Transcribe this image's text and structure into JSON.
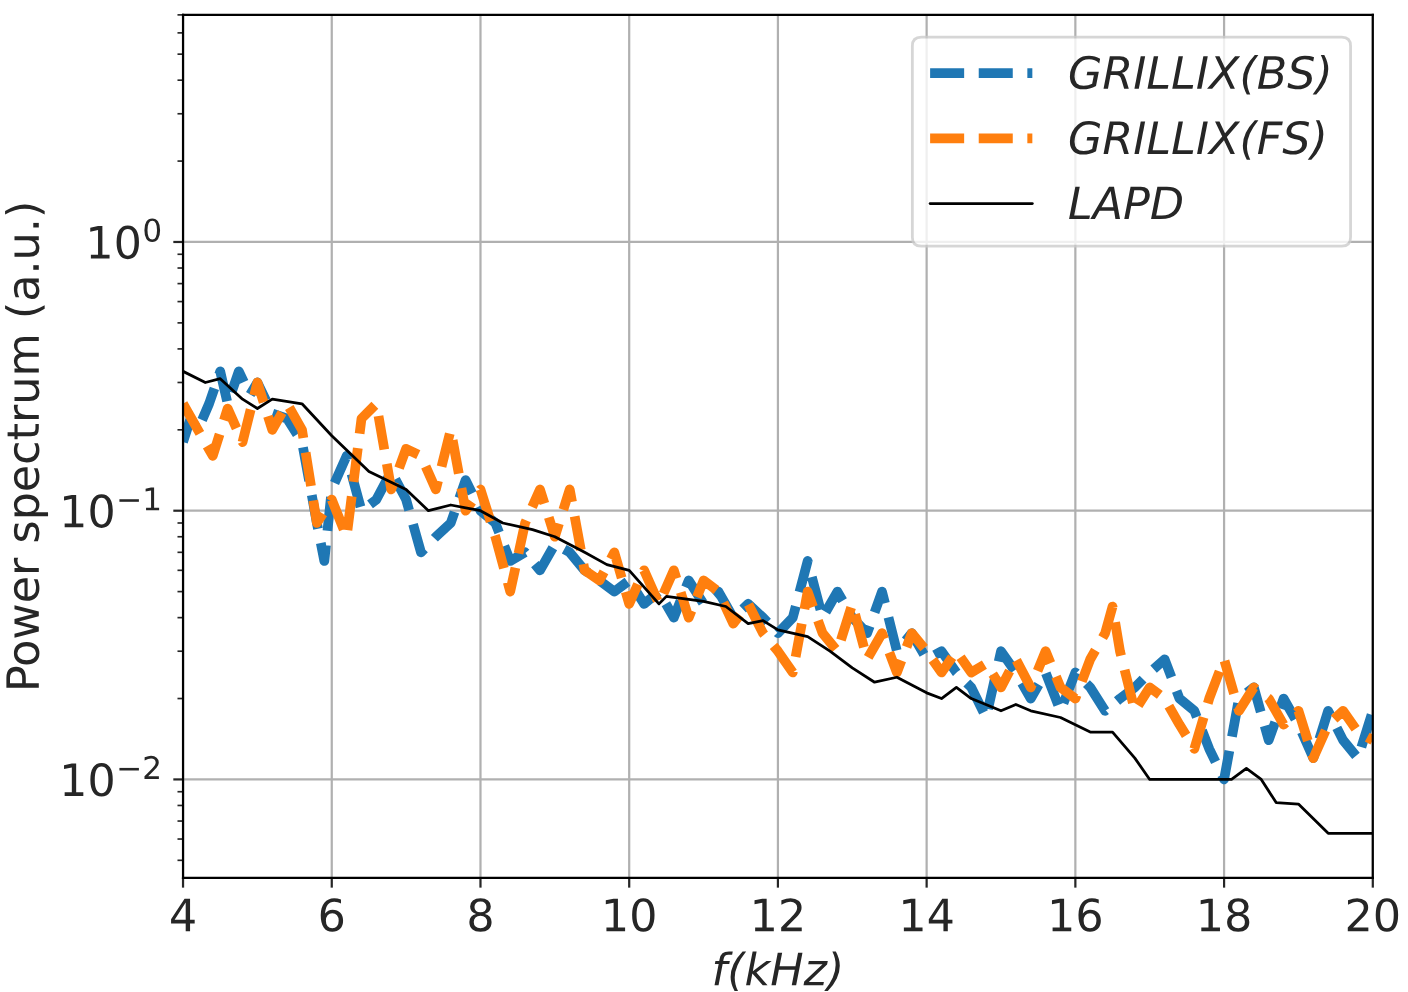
{
  "chart_data": {
    "type": "line",
    "xlabel": "f(kHz)",
    "ylabel": "Power spectrum (a.u.)",
    "log": "y",
    "grid": true,
    "legend": "top right",
    "xlim": [
      4,
      20
    ],
    "xticks": [
      4,
      6,
      8,
      10,
      12,
      14,
      16,
      18,
      20
    ],
    "ylim": [
      0.0043,
      7
    ],
    "yticks": [
      {
        "value": 0.01,
        "label": "10$^{−2}$"
      },
      {
        "value": 0.1,
        "label": "10$^{−1}$"
      },
      {
        "value": 1,
        "label": "10$^{0}$"
      }
    ],
    "series": [
      {
        "name": "GRILLIX(BS)",
        "color": "#1f77b4",
        "line_style": "dashed",
        "x": [
          4.0,
          4.1,
          4.2,
          4.35,
          4.5,
          4.6,
          4.75,
          4.9,
          5.0,
          5.2,
          5.4,
          5.6,
          5.8,
          5.9,
          6.0,
          6.2,
          6.4,
          6.6,
          6.8,
          7.0,
          7.2,
          7.4,
          7.6,
          7.8,
          8.0,
          8.2,
          8.4,
          8.6,
          8.8,
          9.0,
          9.2,
          9.4,
          9.6,
          9.8,
          10.0,
          10.2,
          10.4,
          10.6,
          10.8,
          11.0,
          11.2,
          11.4,
          11.6,
          11.8,
          12.0,
          12.2,
          12.4,
          12.6,
          12.8,
          13.0,
          13.2,
          13.4,
          13.6,
          13.8,
          14.0,
          14.2,
          14.4,
          14.6,
          14.8,
          15.0,
          15.2,
          15.4,
          15.6,
          15.8,
          16.0,
          16.2,
          16.4,
          16.6,
          16.8,
          17.0,
          17.2,
          17.4,
          17.6,
          17.8,
          18.0,
          18.2,
          18.4,
          18.6,
          18.8,
          19.0,
          19.2,
          19.4,
          19.6,
          19.8,
          20.0
        ],
        "values": [
          0.18,
          0.22,
          0.2,
          0.25,
          0.33,
          0.25,
          0.33,
          0.27,
          0.3,
          0.23,
          0.22,
          0.18,
          0.09,
          0.065,
          0.12,
          0.16,
          0.1,
          0.11,
          0.14,
          0.11,
          0.07,
          0.08,
          0.09,
          0.13,
          0.1,
          0.09,
          0.065,
          0.07,
          0.06,
          0.075,
          0.07,
          0.06,
          0.055,
          0.05,
          0.055,
          0.045,
          0.05,
          0.04,
          0.055,
          0.045,
          0.05,
          0.04,
          0.045,
          0.04,
          0.035,
          0.04,
          0.065,
          0.04,
          0.05,
          0.04,
          0.035,
          0.05,
          0.03,
          0.035,
          0.028,
          0.03,
          0.025,
          0.022,
          0.017,
          0.03,
          0.025,
          0.02,
          0.025,
          0.018,
          0.025,
          0.022,
          0.018,
          0.02,
          0.022,
          0.025,
          0.028,
          0.02,
          0.018,
          0.013,
          0.01,
          0.02,
          0.022,
          0.014,
          0.02,
          0.016,
          0.012,
          0.018,
          0.014,
          0.012,
          0.018
        ]
      },
      {
        "name": "GRILLIX(FS)",
        "color": "#ff7f0e",
        "line_style": "dashed",
        "x": [
          4.0,
          4.2,
          4.4,
          4.6,
          4.8,
          5.0,
          5.2,
          5.4,
          5.6,
          5.8,
          6.0,
          6.2,
          6.4,
          6.6,
          6.8,
          7.0,
          7.2,
          7.4,
          7.6,
          7.8,
          8.0,
          8.2,
          8.4,
          8.6,
          8.8,
          9.0,
          9.2,
          9.4,
          9.6,
          9.8,
          10.0,
          10.2,
          10.4,
          10.6,
          10.8,
          11.0,
          11.2,
          11.4,
          11.6,
          11.8,
          12.0,
          12.2,
          12.4,
          12.6,
          12.8,
          13.0,
          13.2,
          13.4,
          13.6,
          13.8,
          14.0,
          14.2,
          14.4,
          14.6,
          14.8,
          15.0,
          15.2,
          15.4,
          15.6,
          15.8,
          16.0,
          16.2,
          16.4,
          16.5,
          16.6,
          16.8,
          17.0,
          17.2,
          17.4,
          17.6,
          17.8,
          18.0,
          18.2,
          18.4,
          18.6,
          18.8,
          19.0,
          19.2,
          19.4,
          19.6,
          19.8,
          20.0
        ],
        "values": [
          0.25,
          0.2,
          0.16,
          0.24,
          0.18,
          0.3,
          0.2,
          0.25,
          0.2,
          0.09,
          0.11,
          0.08,
          0.22,
          0.25,
          0.12,
          0.17,
          0.16,
          0.12,
          0.2,
          0.1,
          0.12,
          0.08,
          0.05,
          0.09,
          0.12,
          0.08,
          0.12,
          0.06,
          0.055,
          0.07,
          0.045,
          0.06,
          0.045,
          0.06,
          0.04,
          0.055,
          0.05,
          0.038,
          0.045,
          0.035,
          0.03,
          0.025,
          0.05,
          0.035,
          0.03,
          0.045,
          0.028,
          0.035,
          0.025,
          0.035,
          0.03,
          0.025,
          0.03,
          0.025,
          0.027,
          0.022,
          0.028,
          0.022,
          0.03,
          0.022,
          0.02,
          0.028,
          0.035,
          0.044,
          0.03,
          0.018,
          0.022,
          0.02,
          0.016,
          0.013,
          0.02,
          0.028,
          0.018,
          0.022,
          0.02,
          0.016,
          0.018,
          0.012,
          0.016,
          0.018,
          0.015,
          0.014
        ]
      },
      {
        "name": "LAPD",
        "color": "#000000",
        "line_style": "solid",
        "x": [
          4.0,
          4.3,
          4.5,
          4.8,
          5.0,
          5.2,
          5.6,
          6.0,
          6.5,
          7.0,
          7.3,
          7.6,
          8.0,
          8.3,
          8.7,
          9.0,
          9.4,
          9.7,
          10.0,
          10.4,
          10.5,
          11.0,
          11.3,
          11.6,
          11.8,
          12.0,
          12.4,
          12.7,
          13.0,
          13.3,
          13.6,
          14.0,
          14.2,
          14.4,
          14.6,
          15.0,
          15.2,
          15.4,
          15.8,
          16.2,
          16.5,
          16.8,
          17.0,
          17.5,
          18.0,
          18.1,
          18.3,
          18.5,
          18.7,
          19.0,
          19.4,
          20.0
        ],
        "values": [
          0.33,
          0.3,
          0.31,
          0.26,
          0.24,
          0.26,
          0.25,
          0.19,
          0.14,
          0.12,
          0.1,
          0.105,
          0.1,
          0.09,
          0.085,
          0.08,
          0.07,
          0.063,
          0.06,
          0.045,
          0.048,
          0.046,
          0.044,
          0.038,
          0.039,
          0.036,
          0.034,
          0.03,
          0.026,
          0.023,
          0.024,
          0.021,
          0.02,
          0.022,
          0.02,
          0.018,
          0.019,
          0.018,
          0.017,
          0.015,
          0.015,
          0.012,
          0.01,
          0.01,
          0.01,
          0.01,
          0.011,
          0.01,
          0.0082,
          0.0081,
          0.0063,
          0.0063
        ]
      }
    ]
  }
}
